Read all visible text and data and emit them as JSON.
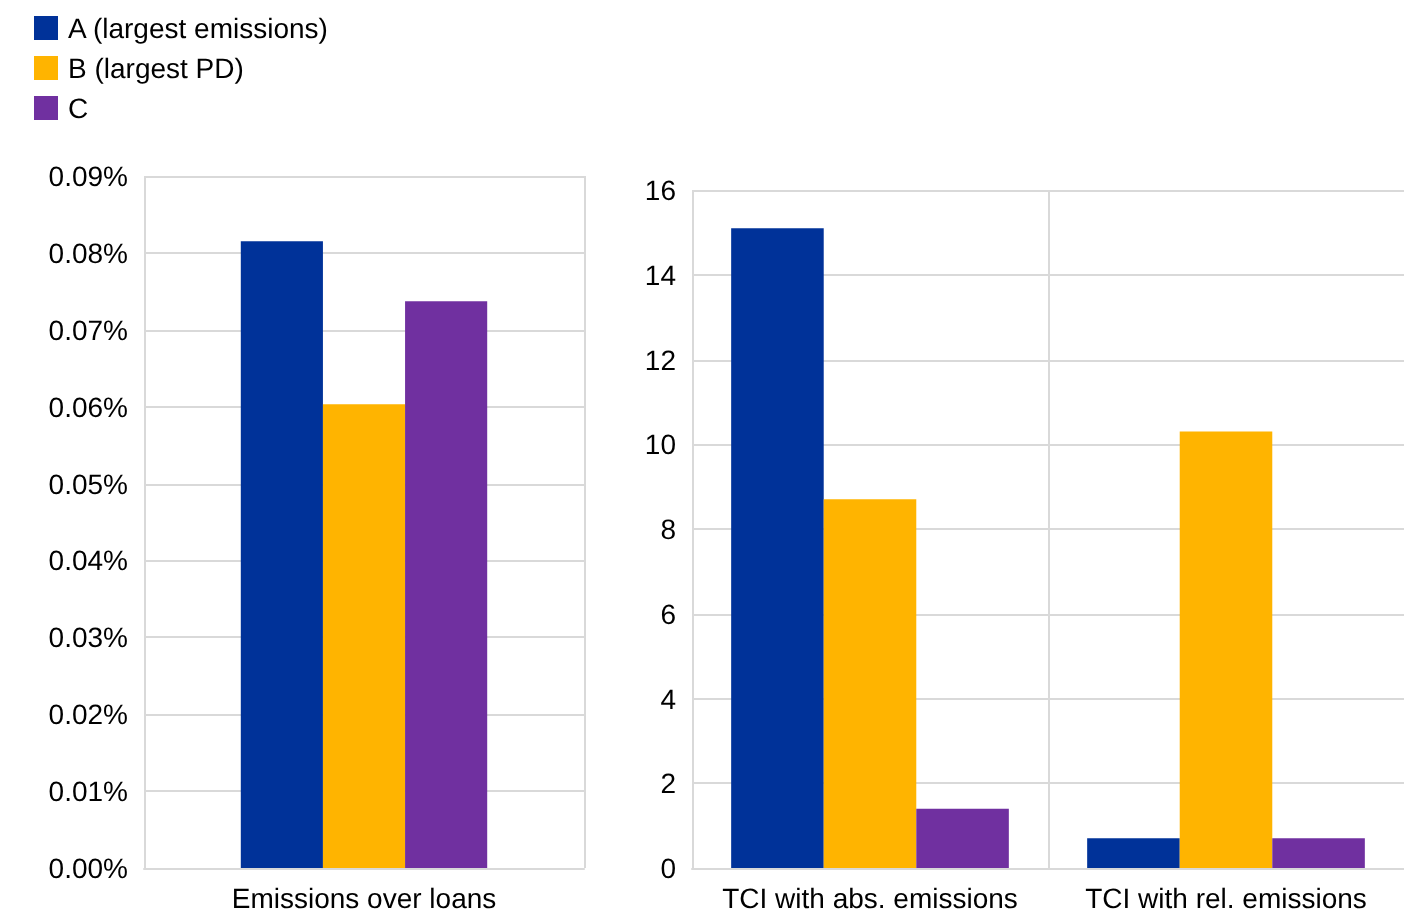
{
  "chart_data": [
    {
      "type": "bar",
      "categories": [
        "Emissions over loans"
      ],
      "series": [
        {
          "name": "A (largest emissions)",
          "color": "#003299",
          "values": [
            0.0815
          ]
        },
        {
          "name": "B (largest PD)",
          "color": "#ffb400",
          "values": [
            0.0603
          ]
        },
        {
          "name": "C",
          "color": "#7030a0",
          "values": [
            0.0737
          ]
        }
      ],
      "ylim": [
        0,
        0.09
      ],
      "yticks": [
        {
          "value": 0,
          "label": "0.00%"
        },
        {
          "value": 0.01,
          "label": "0.01%"
        },
        {
          "value": 0.02,
          "label": "0.02%"
        },
        {
          "value": 0.03,
          "label": "0.03%"
        },
        {
          "value": 0.04,
          "label": "0.04%"
        },
        {
          "value": 0.05,
          "label": "0.05%"
        },
        {
          "value": 0.06,
          "label": "0.06%"
        },
        {
          "value": 0.07,
          "label": "0.07%"
        },
        {
          "value": 0.08,
          "label": "0.08%"
        },
        {
          "value": 0.09,
          "label": "0.09%"
        }
      ],
      "grid": true,
      "legend": "top left"
    },
    {
      "type": "bar",
      "categories": [
        "TCI with abs. emissions",
        "TCI with rel. emissions"
      ],
      "series": [
        {
          "color": "#003299",
          "values": [
            15.1,
            0.7
          ]
        },
        {
          "color": "#ffb400",
          "values": [
            8.7,
            10.3
          ]
        },
        {
          "color": "#7030a0",
          "values": [
            1.4,
            0.7
          ]
        }
      ],
      "ylim": [
        0,
        16
      ],
      "yticks": [
        0,
        2,
        4,
        6,
        8,
        10,
        12,
        14,
        16
      ],
      "grid": true
    }
  ]
}
